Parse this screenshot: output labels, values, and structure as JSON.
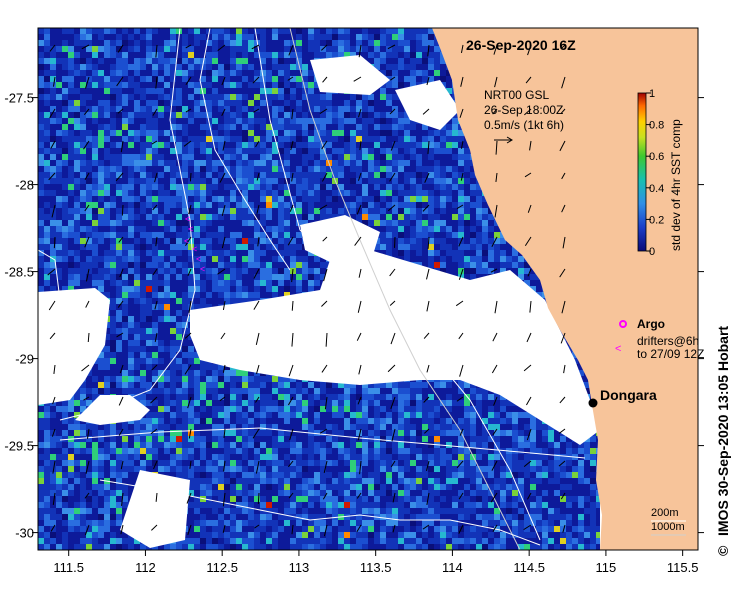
{
  "map": {
    "title": "26-Sep-2020 16Z",
    "x_ticks": [
      "111.5",
      "112",
      "112.5",
      "113",
      "113.5",
      "114",
      "114.5",
      "115",
      "115.5"
    ],
    "y_ticks": [
      "-27.5",
      "-28",
      "-28.5",
      "-29",
      "-29.5",
      "-30"
    ],
    "x_range": [
      111.3,
      115.6
    ],
    "y_range": [
      -27.1,
      -30.1
    ],
    "colors": {
      "land": "#f7c49a",
      "cloud_mask": "#ffffff",
      "sst_low": "#0c1f8c",
      "sst_mid": "#3c8fe0",
      "sst_high": "#ff4d00",
      "argo": "#ff00ff",
      "drifter": "#ff00ff"
    }
  },
  "currents": {
    "label_line1": "NRT00 GSL",
    "label_line2": "26-Sep 18:00Z",
    "label_line3": "0.5m/s (1kt 6h)"
  },
  "colorbar": {
    "title": "std dev of 4hr SST comp",
    "ticks": [
      "1",
      "0.8",
      "0.6",
      "0.4",
      "0.2",
      "0"
    ],
    "values": [
      1,
      0.8,
      0.6,
      0.4,
      0.2,
      0
    ]
  },
  "legend": {
    "argo_label": "Argo",
    "drifter_line1": "drifters@6h",
    "drifter_line2": "to 27/09 12Z",
    "drifter_symbol": "<"
  },
  "place": {
    "name": "Dongara",
    "lon": 114.93,
    "lat": -29.25
  },
  "contours": {
    "label_200": "200m",
    "label_1000": "1000m"
  },
  "credit": {
    "symbol": "©",
    "text": "IMOS 30-Sep-2020 13:05 Hobart"
  }
}
